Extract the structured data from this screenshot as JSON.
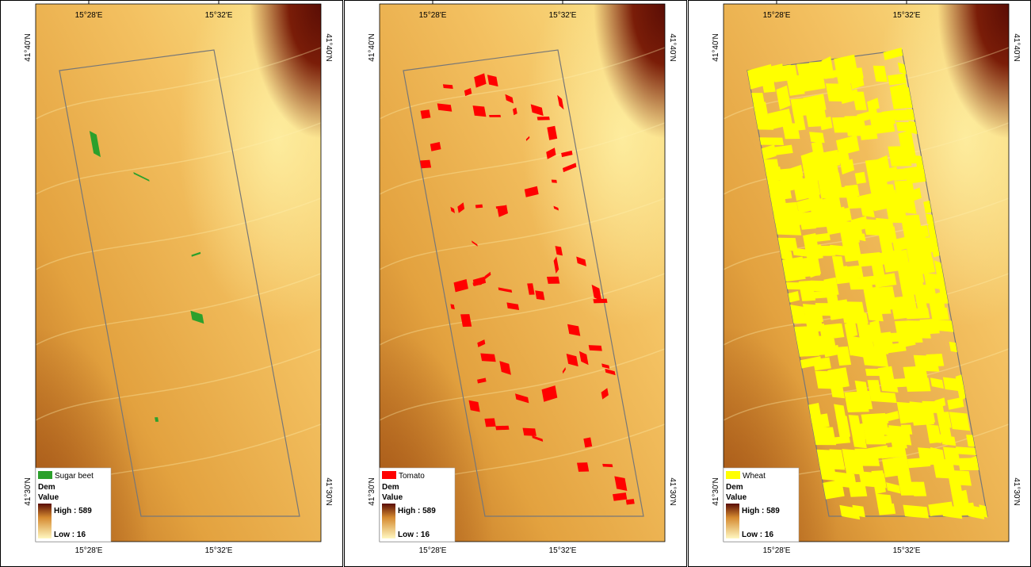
{
  "panels": [
    {
      "legend": {
        "crop": "Sugar beet",
        "crop_color": "#2ca02c",
        "dem": "Dem",
        "value": "Value",
        "high": "High : 589",
        "low": "Low : 16"
      },
      "top_labels": [
        "15°28'E",
        "15°32'E"
      ],
      "bottom_labels": [
        "15°28'E",
        "15°32'E"
      ],
      "left_labels": [
        "41°40'N",
        "41°30'N"
      ],
      "right_labels": [
        "41°40'N",
        "41°30'N"
      ]
    },
    {
      "legend": {
        "crop": "Tomato",
        "crop_color": "#ff0000",
        "dem": "Dem",
        "value": "Value",
        "high": "High : 589",
        "low": "Low : 16"
      },
      "top_labels": [
        "15°28'E",
        "15°32'E"
      ],
      "bottom_labels": [
        "15°28'E",
        "15°32'E"
      ],
      "left_labels": [
        "41°40'N",
        "41°30'N"
      ],
      "right_labels": [
        "41°40'N",
        "41°30'N"
      ]
    },
    {
      "legend": {
        "crop": "Wheat",
        "crop_color": "#ffff00",
        "dem": "Dem",
        "value": "Value",
        "high": "High : 589",
        "low": "Low : 16"
      },
      "top_labels": [
        "15°28'E",
        "15°32'E"
      ],
      "bottom_labels": [
        "15°28'E",
        "15°32'E"
      ],
      "left_labels": [
        "41°40'N",
        "41°30'N"
      ],
      "right_labels": [
        "41°40'N",
        "41°30'N"
      ]
    }
  ]
}
